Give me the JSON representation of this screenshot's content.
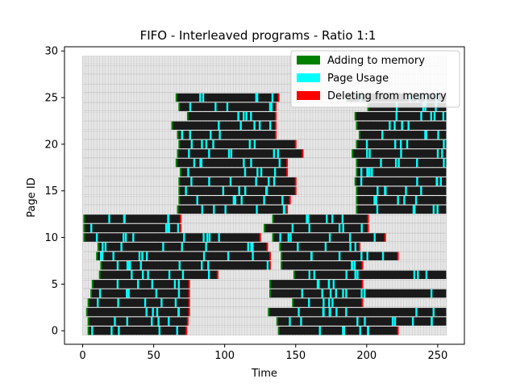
{
  "chart_data": {
    "type": "gantt",
    "title": "FIFO - Interleaved programs - Ratio 1:1",
    "xlabel": "Time",
    "ylabel": "Page ID",
    "xlim": [
      -12.8,
      268.8
    ],
    "ylim": [
      -1.45,
      30.45
    ],
    "xticks": [
      0,
      50,
      100,
      150,
      200,
      250
    ],
    "yticks": [
      0,
      5,
      10,
      15,
      20,
      25,
      30
    ],
    "grid": false,
    "legend_position": "top-right",
    "time_range": [
      0,
      256
    ],
    "page_count": 30,
    "legend": [
      {
        "label": "Adding to memory",
        "color": "#008000"
      },
      {
        "label": "Page Usage",
        "color": "#00ffff"
      },
      {
        "label": "Deleting from memory",
        "color": "#ff0000"
      }
    ],
    "colors": {
      "resident": "#1a1a1a",
      "background": "#e6e6e6"
    },
    "resident_intervals": [
      [
        [
          4,
          73
        ],
        [
          138,
          222
        ]
      ],
      [
        [
          4,
          74
        ],
        [
          137,
          256
        ]
      ],
      [
        [
          3,
          75
        ],
        [
          131,
          256
        ]
      ],
      [
        [
          4,
          75
        ],
        [
          148,
          197
        ]
      ],
      [
        [
          6,
          75
        ],
        [
          132,
          256
        ]
      ],
      [
        [
          7,
          75
        ],
        [
          132,
          197
        ]
      ],
      [
        [
          12,
          95
        ],
        [
          149,
          256
        ]
      ],
      [
        [
          13,
          132
        ],
        [
          140,
          197
        ]
      ],
      [
        [
          10,
          132
        ],
        [
          140,
          222
        ]
      ],
      [
        [
          11,
          130
        ],
        [
          139,
          195
        ]
      ],
      [
        [
          1,
          125
        ],
        [
          134,
          213
        ]
      ],
      [
        [
          1,
          69
        ],
        [
          128,
          201
        ]
      ],
      [
        [
          1,
          69
        ],
        [
          134,
          201
        ]
      ],
      [
        [
          67,
          144
        ],
        [
          193,
          256
        ]
      ],
      [
        [
          68,
          146
        ],
        [
          193,
          256
        ]
      ],
      [
        [
          68,
          150
        ],
        [
          193,
          256
        ]
      ],
      [
        [
          68,
          150
        ],
        [
          192,
          256
        ]
      ],
      [
        [
          69,
          144
        ],
        [
          193,
          256
        ]
      ],
      [
        [
          66,
          144
        ],
        [
          193,
          256
        ]
      ],
      [
        [
          67,
          155
        ],
        [
          190,
          256
        ]
      ],
      [
        [
          68,
          150
        ],
        [
          193,
          256
        ]
      ],
      [
        [
          67,
          136
        ],
        [
          195,
          256
        ]
      ],
      [
        [
          63,
          136
        ],
        [
          193,
          256
        ]
      ],
      [
        [
          74,
          136
        ],
        [
          192,
          256
        ]
      ],
      [
        [
          68,
          136
        ],
        [
          201,
          256
        ]
      ],
      [
        [
          66,
          138
        ],
        [
          186,
          256
        ]
      ]
    ]
  }
}
